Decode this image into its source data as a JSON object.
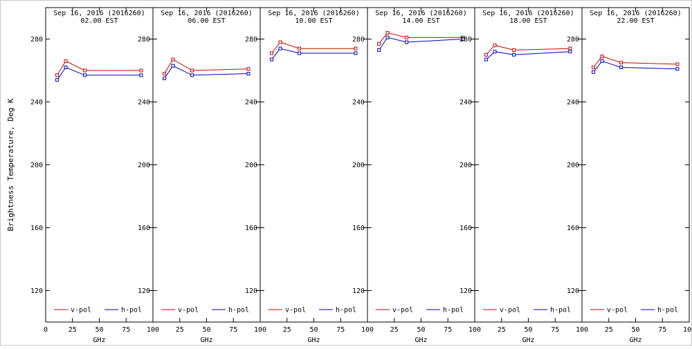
{
  "chart_data": {
    "type": "line",
    "x": [
      10.7,
      18.7,
      36.5,
      89.0
    ],
    "xlim": [
      0,
      100
    ],
    "ylim": [
      100,
      300
    ],
    "xticks": [
      0,
      25,
      50,
      75,
      100
    ],
    "yticks": [
      120,
      160,
      200,
      240,
      280
    ],
    "xlabel": "GHz",
    "ylabel": "Brightness Temperature, Deg K",
    "grid": false,
    "legend_position": "bottom-inside-each-panel",
    "legend": [
      {
        "label": "v-pol",
        "color": "#cc0000"
      },
      {
        "label": "h-pol",
        "color": "#0000bb"
      }
    ],
    "panels": [
      {
        "title": "Sep 16, 2016 (2016260)",
        "subtitle": "02.00 EST",
        "series": [
          {
            "name": "v-pol",
            "color": "#cc0000",
            "values": [
              257,
              266,
              260,
              260
            ]
          },
          {
            "name": "h-pol",
            "color": "#0000bb",
            "values": [
              254,
              262,
              257,
              257
            ]
          }
        ]
      },
      {
        "title": "Sep 16, 2016 (2016260)",
        "subtitle": "06.00 EST",
        "series": [
          {
            "name": "v-pol",
            "color": "#cc0000",
            "values": [
              258,
              267,
              260,
              261
            ]
          },
          {
            "name": "h-pol",
            "color": "#0000bb",
            "values": [
              255,
              263,
              257,
              258
            ]
          }
        ]
      },
      {
        "title": "Sep 16, 2016 (2016260)",
        "subtitle": "10.00 EST",
        "series": [
          {
            "name": "v-pol",
            "color": "#cc0000",
            "values": [
              271,
              278,
              274,
              274
            ]
          },
          {
            "name": "h-pol",
            "color": "#0000bb",
            "values": [
              267,
              274,
              271,
              271
            ]
          }
        ]
      },
      {
        "title": "Sep 16, 2016 (2016260)",
        "subtitle": "14.00 EST",
        "series": [
          {
            "name": "v-pol",
            "color": "#cc0000",
            "values": [
              277,
              284,
              281,
              281
            ]
          },
          {
            "name": "h-pol",
            "color": "#0000bb",
            "values": [
              273,
              281,
              278,
              280
            ]
          }
        ]
      },
      {
        "title": "Sep 16, 2016 (2016260)",
        "subtitle": "18.00 EST",
        "series": [
          {
            "name": "v-pol",
            "color": "#cc0000",
            "values": [
              270,
              276,
              273,
              274
            ]
          },
          {
            "name": "h-pol",
            "color": "#0000bb",
            "values": [
              267,
              272,
              270,
              272
            ]
          }
        ]
      },
      {
        "title": "Sep 16, 2016 (2016260)",
        "subtitle": "22.00 EST",
        "series": [
          {
            "name": "v-pol",
            "color": "#cc0000",
            "values": [
              262,
              269,
              265,
              264
            ]
          },
          {
            "name": "h-pol",
            "color": "#0000bb",
            "values": [
              259,
              266,
              262,
              261
            ]
          }
        ]
      }
    ]
  }
}
